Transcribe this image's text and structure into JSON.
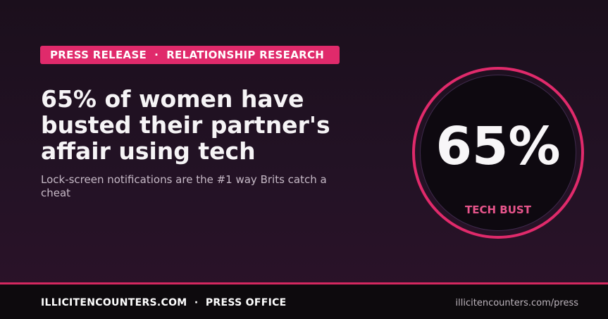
{
  "tag": {
    "label": "PRESS RELEASE  ·  RELATIONSHIP RESEARCH"
  },
  "headline": "65% of women have busted their partner's affair using tech",
  "subtitle": "Lock-screen notifications are the #1 way Brits catch a cheat",
  "stat": {
    "value": "65%",
    "label": "TECH BUST"
  },
  "footer": {
    "left": "ILLICITENCOUNTERS.COM  ·  PRESS OFFICE",
    "right": "illicitencounters.com/press"
  },
  "colors": {
    "accent": "#e02a6b",
    "background": "#1f1020",
    "footer": "#0d0a0d"
  }
}
